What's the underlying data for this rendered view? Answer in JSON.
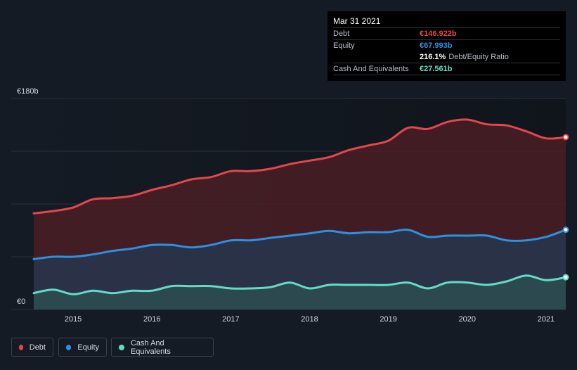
{
  "tooltip": {
    "date": "Mar 31 2021",
    "debt_label": "Debt",
    "debt_value": "€146.922b",
    "equity_label": "Equity",
    "equity_value": "€67.993b",
    "ratio_value": "216.1%",
    "ratio_label": "Debt/Equity Ratio",
    "cash_label": "Cash And Equivalents",
    "cash_value": "€27.561b"
  },
  "legend": {
    "debt": "Debt",
    "equity": "Equity",
    "cash": "Cash And Equivalents"
  },
  "colors": {
    "debt": "#e4464d",
    "equity": "#2f8fe0",
    "cash": "#63dcc7",
    "background": "#151b24"
  },
  "chart_data": {
    "type": "area",
    "title": "",
    "xlabel": "",
    "ylabel": "",
    "y_top_label": "€180b",
    "y_bottom_label": "€0",
    "ylim": [
      0,
      180
    ],
    "xlim": [
      2014.5,
      2021.25
    ],
    "x_ticks": [
      2015,
      2016,
      2017,
      2018,
      2019,
      2020,
      2021
    ],
    "x_tick_labels": [
      "2015",
      "2016",
      "2017",
      "2018",
      "2019",
      "2020",
      "2021"
    ],
    "series": [
      {
        "name": "Debt",
        "x": [
          2014.5,
          2014.75,
          2015.0,
          2015.25,
          2015.5,
          2015.75,
          2016.0,
          2016.25,
          2016.5,
          2016.75,
          2017.0,
          2017.25,
          2017.5,
          2017.75,
          2018.0,
          2018.25,
          2018.5,
          2018.75,
          2019.0,
          2019.25,
          2019.5,
          2019.75,
          2020.0,
          2020.25,
          2020.5,
          2020.75,
          2021.0,
          2021.25
        ],
        "values": [
          82,
          84,
          87,
          94,
          95,
          97,
          102,
          106,
          111,
          113,
          118,
          118,
          120,
          124,
          127,
          130,
          136,
          140,
          144,
          155,
          154,
          160,
          162,
          158,
          157,
          152,
          146,
          147
        ]
      },
      {
        "name": "Equity",
        "x": [
          2014.5,
          2014.75,
          2015.0,
          2015.25,
          2015.5,
          2015.75,
          2016.0,
          2016.25,
          2016.5,
          2016.75,
          2017.0,
          2017.25,
          2017.5,
          2017.75,
          2018.0,
          2018.25,
          2018.5,
          2018.75,
          2019.0,
          2019.25,
          2019.5,
          2019.75,
          2020.0,
          2020.25,
          2020.5,
          2020.75,
          2021.0,
          2021.25
        ],
        "values": [
          43,
          45,
          45,
          47,
          50,
          52,
          55,
          55,
          53,
          55,
          59,
          59,
          61,
          63,
          65,
          67,
          65,
          66,
          66,
          68,
          62,
          63,
          63,
          63,
          59,
          59,
          62,
          68
        ]
      },
      {
        "name": "Cash And Equivalents",
        "x": [
          2014.5,
          2014.75,
          2015.0,
          2015.25,
          2015.5,
          2015.75,
          2016.0,
          2016.25,
          2016.5,
          2016.75,
          2017.0,
          2017.25,
          2017.5,
          2017.75,
          2018.0,
          2018.25,
          2018.5,
          2018.75,
          2019.0,
          2019.25,
          2019.5,
          2019.75,
          2020.0,
          2020.25,
          2020.5,
          2020.75,
          2021.0,
          2021.25
        ],
        "values": [
          14,
          17,
          13,
          16,
          14,
          16,
          16,
          20,
          20,
          20,
          18,
          18,
          19,
          23,
          18,
          21,
          21,
          21,
          21,
          23,
          18,
          23,
          23,
          21,
          24,
          29,
          25,
          27.5
        ]
      }
    ]
  }
}
